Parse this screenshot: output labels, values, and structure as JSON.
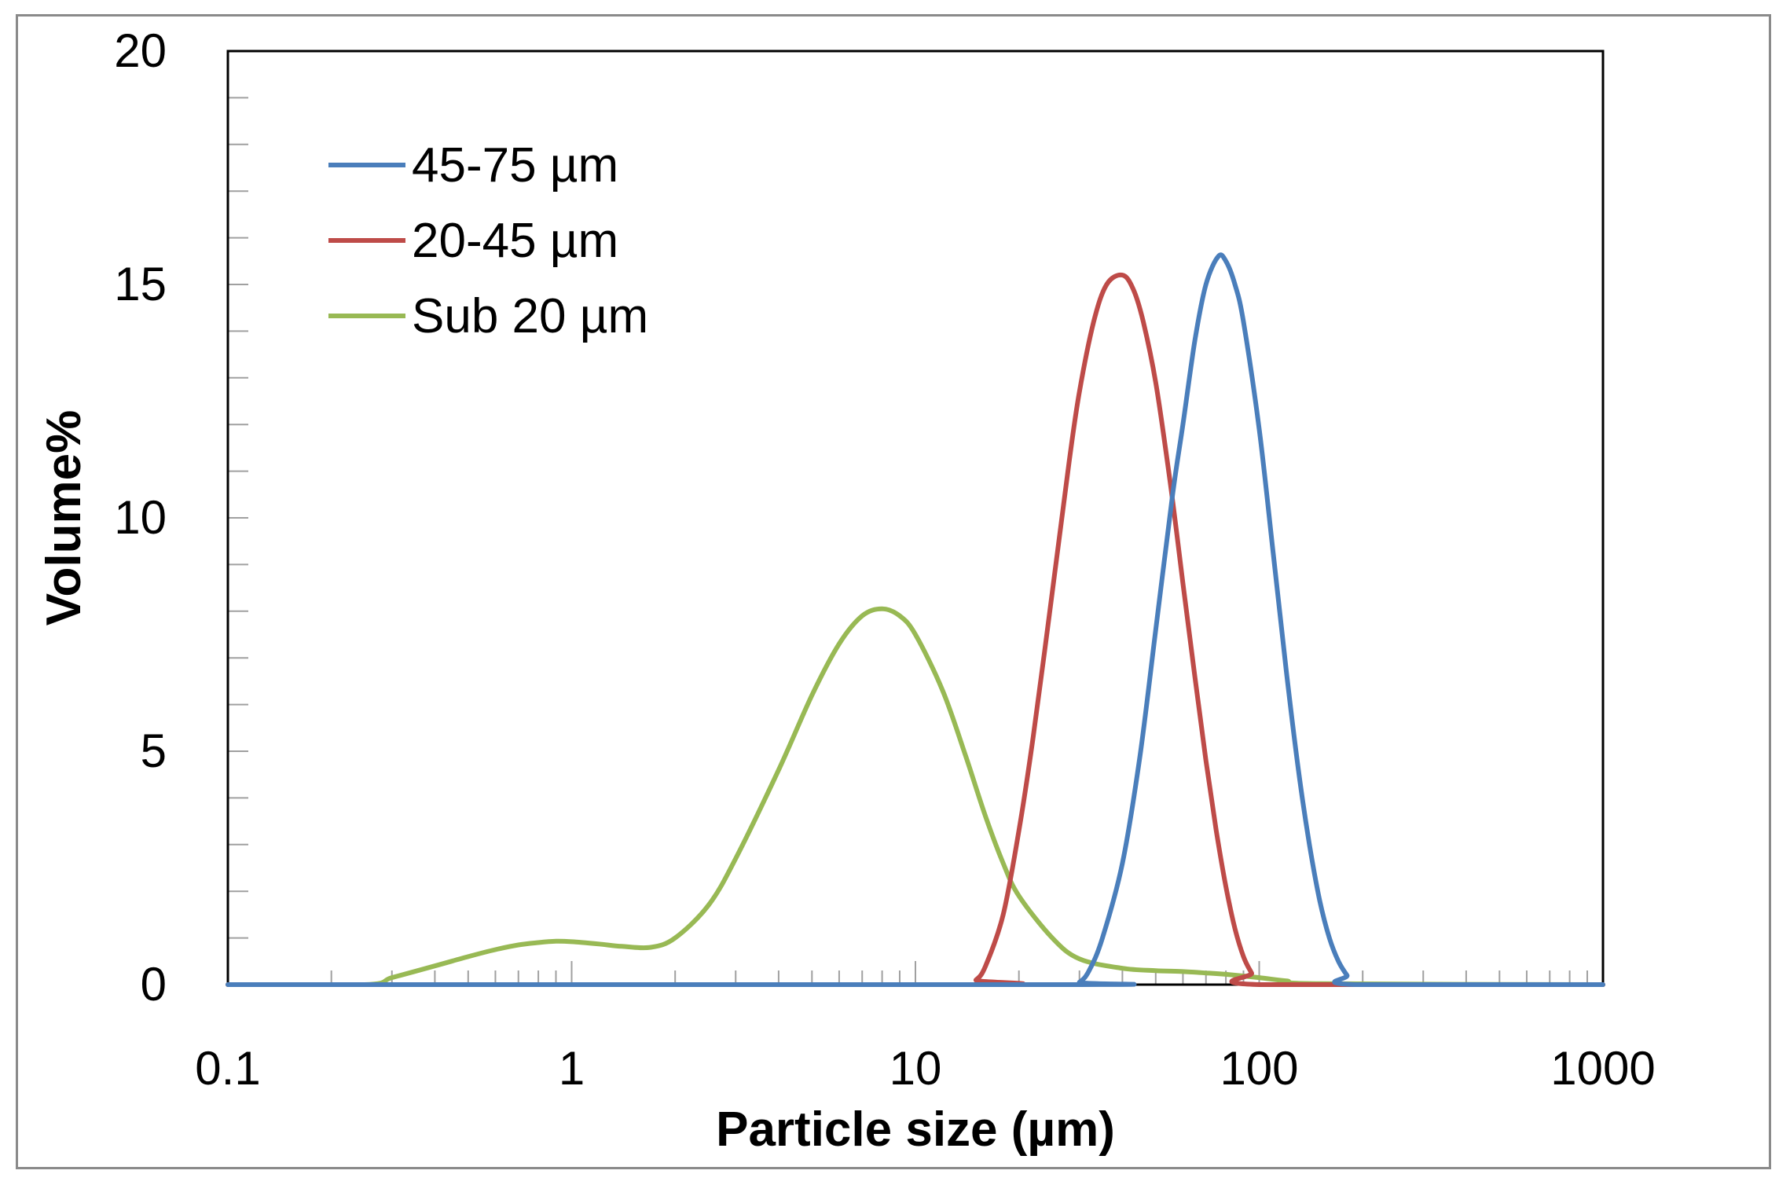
{
  "chart_data": {
    "type": "line",
    "title": "",
    "xlabel": "Particle size (µm)",
    "ylabel": "Volume%",
    "x_scale": "log",
    "xlim": [
      0.1,
      1000
    ],
    "ylim": [
      0,
      20
    ],
    "x_ticks": [
      "0.1",
      "1",
      "10",
      "100",
      "1000"
    ],
    "y_ticks": [
      "0",
      "5",
      "10",
      "15",
      "20"
    ],
    "grid": false,
    "legend_position": "top-left",
    "series": [
      {
        "name": "45-75 µm",
        "color": "#4a7ebb",
        "x": [
          0.1,
          28,
          30,
          32,
          35,
          40,
          45,
          50,
          56,
          60,
          65,
          70,
          76,
          80,
          85,
          90,
          100,
          110,
          120,
          130,
          140,
          150,
          160,
          170,
          180,
          190,
          1000
        ],
        "y": [
          0,
          0,
          0.05,
          0.3,
          1.0,
          2.6,
          4.9,
          7.6,
          10.5,
          12.0,
          13.8,
          15.0,
          15.6,
          15.5,
          15.0,
          14.2,
          11.9,
          9.2,
          6.7,
          4.6,
          3.0,
          1.8,
          1.0,
          0.5,
          0.2,
          0,
          0
        ]
      },
      {
        "name": "20-45 µm",
        "color": "#be4b48",
        "x": [
          0.1,
          14,
          15,
          16,
          18,
          20,
          22,
          25,
          28,
          30,
          33,
          36,
          40,
          43,
          46,
          50,
          55,
          60,
          65,
          70,
          75,
          80,
          85,
          90,
          95,
          100,
          1000
        ],
        "y": [
          0,
          0,
          0.1,
          0.4,
          1.5,
          3.3,
          5.3,
          8.4,
          11.2,
          12.7,
          14.2,
          15.0,
          15.2,
          14.9,
          14.2,
          12.9,
          10.8,
          8.6,
          6.6,
          4.8,
          3.3,
          2.1,
          1.2,
          0.6,
          0.25,
          0,
          0
        ]
      },
      {
        "name": "Sub 20 µm",
        "color": "#98b954",
        "x": [
          0.1,
          0.25,
          0.3,
          0.4,
          0.5,
          0.6,
          0.7,
          0.8,
          0.9,
          1.0,
          1.2,
          1.4,
          1.7,
          2.0,
          2.5,
          3.0,
          4.0,
          5.0,
          6.0,
          7.0,
          8.0,
          9.0,
          10,
          12,
          14,
          16,
          18,
          20,
          25,
          30,
          40,
          50,
          60,
          70,
          80,
          100,
          120,
          150,
          1000
        ],
        "y": [
          0,
          0,
          0.15,
          0.4,
          0.6,
          0.75,
          0.85,
          0.9,
          0.93,
          0.92,
          0.87,
          0.82,
          0.8,
          1.0,
          1.7,
          2.7,
          4.6,
          6.2,
          7.3,
          7.9,
          8.05,
          7.9,
          7.5,
          6.3,
          4.9,
          3.6,
          2.6,
          1.9,
          1.0,
          0.55,
          0.35,
          0.3,
          0.28,
          0.25,
          0.22,
          0.15,
          0.08,
          0.02,
          0
        ]
      }
    ]
  }
}
